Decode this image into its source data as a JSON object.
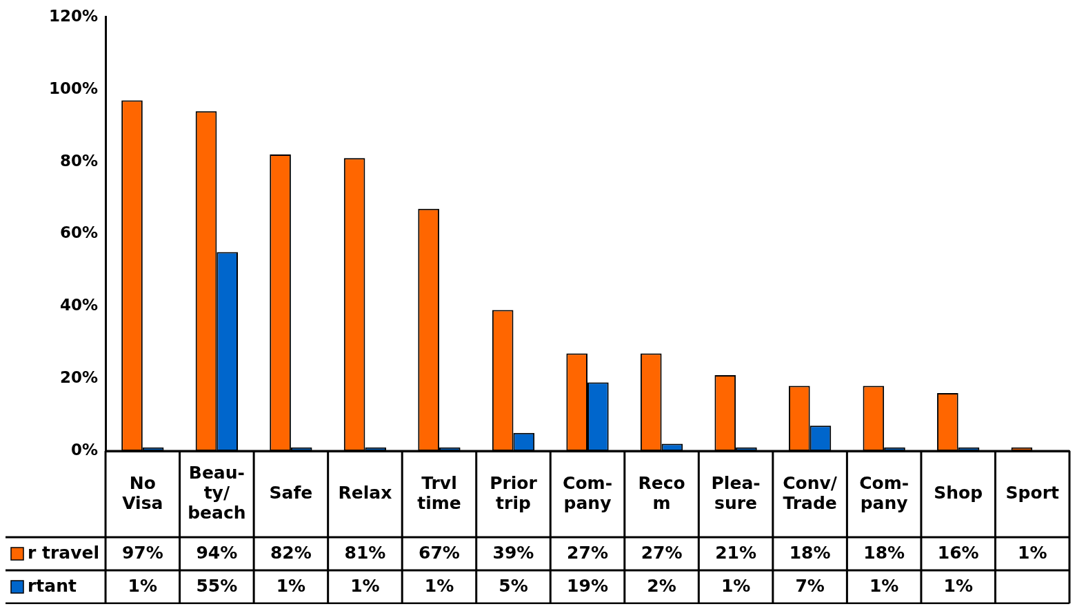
{
  "chart_data": {
    "type": "bar",
    "categories": [
      "No Visa",
      "Beau- ty/ beach",
      "Safe",
      "Relax",
      "Trvl time",
      "Prior trip",
      "Com- pany",
      "Reco m",
      "Plea- sure",
      "Conv/ Trade",
      "Com- pany",
      "Shop",
      "Sport"
    ],
    "series": [
      {
        "name": "r travel",
        "color": "#ff6600",
        "values": [
          97,
          94,
          82,
          81,
          67,
          39,
          27,
          27,
          21,
          18,
          18,
          16,
          1
        ],
        "value_labels": [
          "97%",
          "94%",
          "82%",
          "81%",
          "67%",
          "39%",
          "27%",
          "27%",
          "21%",
          "18%",
          "18%",
          "16%",
          "1%"
        ]
      },
      {
        "name": "rtant",
        "color": "#0066cc",
        "values": [
          1,
          55,
          1,
          1,
          1,
          5,
          19,
          2,
          1,
          7,
          1,
          1,
          null
        ],
        "value_labels": [
          "1%",
          "55%",
          "1%",
          "1%",
          "1%",
          "5%",
          "19%",
          "2%",
          "1%",
          "7%",
          "1%",
          "1%",
          null
        ]
      }
    ],
    "ylim": [
      0,
      120
    ],
    "yticks": [
      {
        "value": 0,
        "label": "0%"
      },
      {
        "value": 20,
        "label": "20%"
      },
      {
        "value": 40,
        "label": "40%"
      },
      {
        "value": 60,
        "label": "60%"
      },
      {
        "value": 80,
        "label": "80%"
      },
      {
        "value": 100,
        "label": "100%"
      },
      {
        "value": 120,
        "label": "120%"
      }
    ],
    "grid": false,
    "legend": "bottom left"
  }
}
